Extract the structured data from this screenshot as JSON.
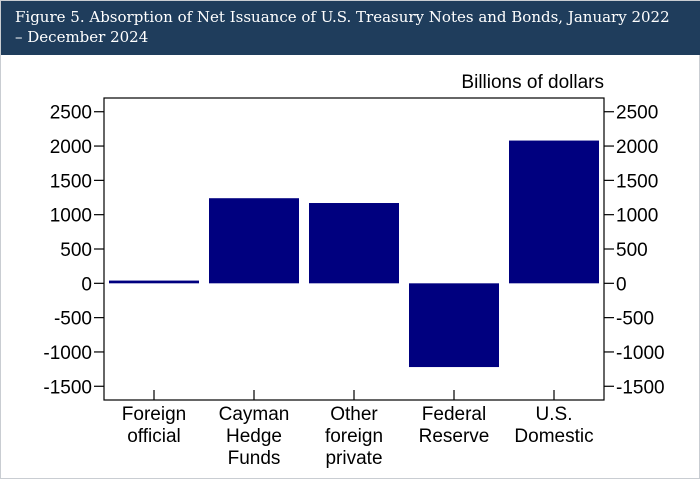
{
  "header": {
    "title": "Figure 5. Absorption of Net Issuance of U.S. Treasury Notes and Bonds, January 2022 – December 2024"
  },
  "colors": {
    "header_bg": "#1f3d5c",
    "bar": "#00007f",
    "axis": "#000000"
  },
  "chart_data": {
    "type": "bar",
    "title": "Figure 5. Absorption of Net Issuance of U.S. Treasury Notes and Bonds, January 2022 – December 2024",
    "unit_label": "Billions of dollars",
    "categories": [
      [
        "Foreign",
        "official"
      ],
      [
        "Cayman",
        "Hedge",
        "Funds"
      ],
      [
        "Other",
        "foreign",
        "private"
      ],
      [
        "Federal",
        "Reserve"
      ],
      [
        "U.S.",
        "Domestic"
      ]
    ],
    "values": [
      40,
      1240,
      1170,
      -1220,
      2080
    ],
    "ylim": [
      -1700,
      2700
    ],
    "yticks": [
      2500,
      2000,
      1500,
      1000,
      500,
      0,
      -500,
      -1000,
      -1500
    ],
    "ytick_labels": [
      "2500",
      "2000",
      "1500",
      "1000",
      "500",
      "0",
      "-500",
      "-1000",
      "-1500"
    ],
    "xlabel": "",
    "ylabel": "",
    "legend": "none",
    "grid": false
  }
}
